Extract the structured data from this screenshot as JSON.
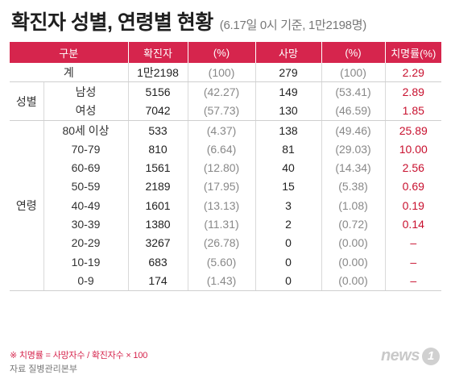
{
  "header": {
    "title": "확진자 성별, 연령별 현황",
    "subtitle": "(6.17일 0시 기준, 1만2198명)"
  },
  "table": {
    "columns": [
      "구분",
      "확진자",
      "(%)",
      "사망",
      "(%)",
      "치명률(%)"
    ],
    "total": {
      "label": "계",
      "cases": "1만2198",
      "cases_pct": "(100)",
      "deaths": "279",
      "deaths_pct": "(100)",
      "fatality": "2.29"
    },
    "sex_group": "성별",
    "sex": [
      {
        "label": "남성",
        "cases": "5156",
        "cases_pct": "(42.27)",
        "deaths": "149",
        "deaths_pct": "(53.41)",
        "fatality": "2.89"
      },
      {
        "label": "여성",
        "cases": "7042",
        "cases_pct": "(57.73)",
        "deaths": "130",
        "deaths_pct": "(46.59)",
        "fatality": "1.85"
      }
    ],
    "age_group": "연령",
    "age": [
      {
        "label": "80세 이상",
        "cases": "533",
        "cases_pct": "(4.37)",
        "deaths": "138",
        "deaths_pct": "(49.46)",
        "fatality": "25.89"
      },
      {
        "label": "70-79",
        "cases": "810",
        "cases_pct": "(6.64)",
        "deaths": "81",
        "deaths_pct": "(29.03)",
        "fatality": "10.00"
      },
      {
        "label": "60-69",
        "cases": "1561",
        "cases_pct": "(12.80)",
        "deaths": "40",
        "deaths_pct": "(14.34)",
        "fatality": "2.56"
      },
      {
        "label": "50-59",
        "cases": "2189",
        "cases_pct": "(17.95)",
        "deaths": "15",
        "deaths_pct": "(5.38)",
        "fatality": "0.69"
      },
      {
        "label": "40-49",
        "cases": "1601",
        "cases_pct": "(13.13)",
        "deaths": "3",
        "deaths_pct": "(1.08)",
        "fatality": "0.19"
      },
      {
        "label": "30-39",
        "cases": "1380",
        "cases_pct": "(11.31)",
        "deaths": "2",
        "deaths_pct": "(0.72)",
        "fatality": "0.14"
      },
      {
        "label": "20-29",
        "cases": "3267",
        "cases_pct": "(26.78)",
        "deaths": "0",
        "deaths_pct": "(0.00)",
        "fatality": "–"
      },
      {
        "label": "10-19",
        "cases": "683",
        "cases_pct": "(5.60)",
        "deaths": "0",
        "deaths_pct": "(0.00)",
        "fatality": "–"
      },
      {
        "label": "0-9",
        "cases": "174",
        "cases_pct": "(1.43)",
        "deaths": "0",
        "deaths_pct": "(0.00)",
        "fatality": "–"
      }
    ]
  },
  "footnote": "※ 치명률 = 사망자수 / 확진자수 × 100",
  "source": "자료 질병관리본부",
  "logo": {
    "text": "news",
    "badge": "1"
  },
  "colors": {
    "header_bg": "#d6254d",
    "rate_text": "#c8102e"
  }
}
